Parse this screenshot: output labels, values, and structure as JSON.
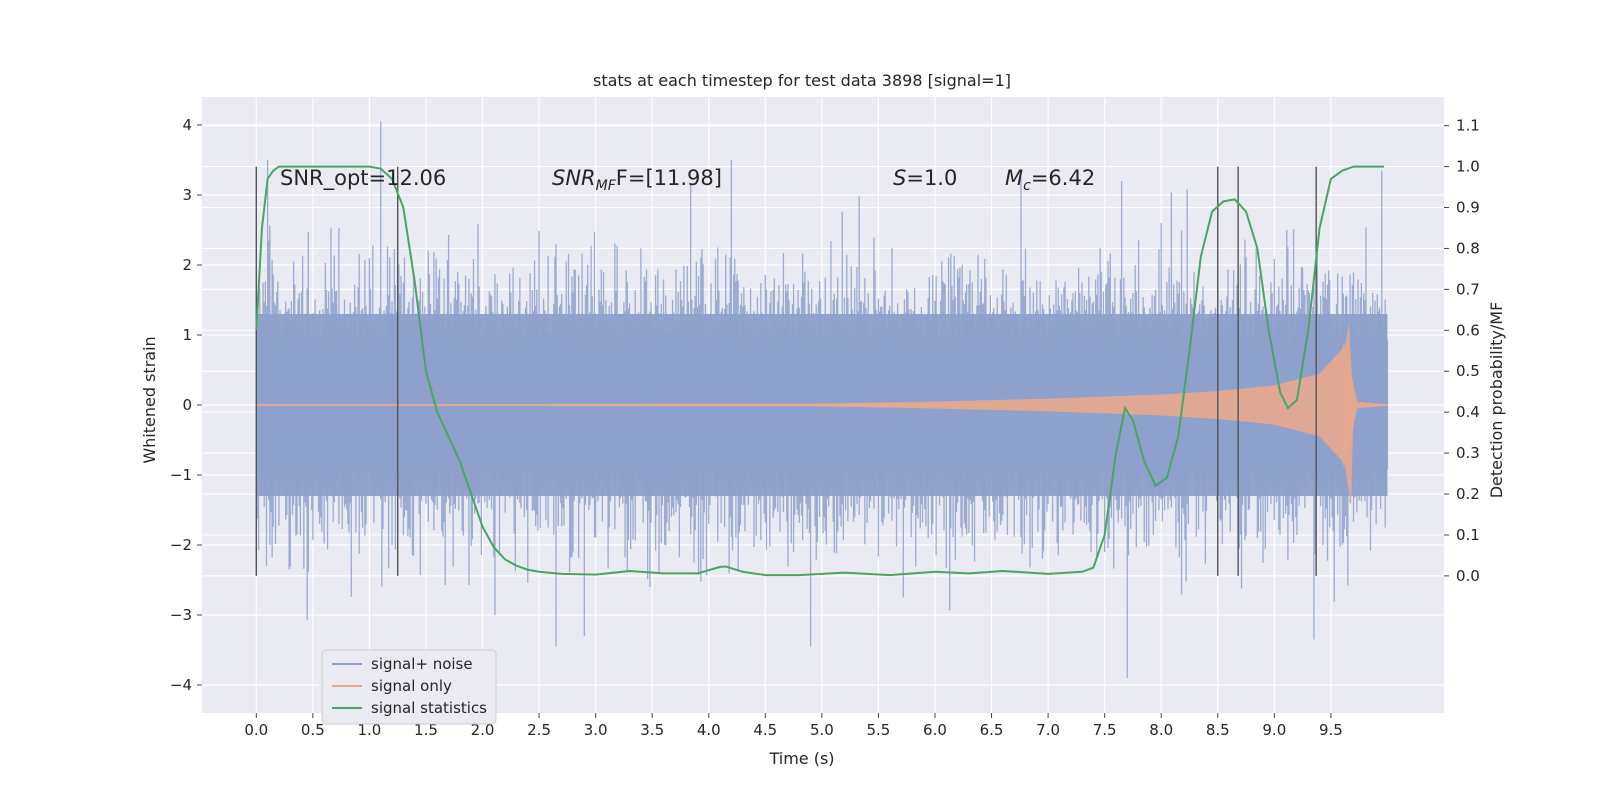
{
  "chart_data": {
    "type": "line",
    "title": "stats at each timestep for test data 3898 [signal=1]",
    "xlabel": "Time (s)",
    "ylabel": "Whitened strain",
    "ylabel_right": "Detection probability/MF",
    "xlim": [
      -0.48,
      10.5
    ],
    "ylim": [
      -4.4,
      4.4
    ],
    "ylim_right": [
      -0.335,
      1.17
    ],
    "x_ticks": [
      "0.0",
      "0.5",
      "1.0",
      "1.5",
      "2.0",
      "2.5",
      "3.0",
      "3.5",
      "4.0",
      "4.5",
      "5.0",
      "5.5",
      "6.0",
      "6.5",
      "7.0",
      "7.5",
      "8.0",
      "8.5",
      "9.0",
      "9.5"
    ],
    "y_ticks": [
      "−4",
      "−3",
      "−2",
      "−1",
      "0",
      "1",
      "2",
      "3",
      "4"
    ],
    "y_ticks_right": [
      "0.0",
      "0.1",
      "0.2",
      "0.3",
      "0.4",
      "0.5",
      "0.6",
      "0.7",
      "0.8",
      "0.9",
      "1.0",
      "1.1"
    ],
    "grid": true,
    "legend_position": "bottom-left",
    "annotations": {
      "snr_opt": "SNR_opt=12.06",
      "snr_mf_base": "SNR",
      "snr_mf_sub": "MF",
      "snr_mf_rest": "F=[11.98]",
      "s_sym": "S",
      "s_rest": "=1.0",
      "mc_base": "M",
      "mc_sub": "c",
      "mc_rest": "=6.42"
    },
    "series": [
      {
        "name": "signal+ noise",
        "color": "#8da0cb",
        "x_range": [
          0.0,
          10.0
        ],
        "band_core": [
          -1.3,
          1.3
        ],
        "peaks_max": [
          [
            0.1,
            3.5
          ],
          [
            1.1,
            4.05
          ],
          [
            4.2,
            3.5
          ],
          [
            7.65,
            3.2
          ],
          [
            9.95,
            3.35
          ]
        ],
        "peaks_min": [
          [
            2.65,
            -3.45
          ],
          [
            2.9,
            -3.3
          ],
          [
            4.9,
            -3.45
          ],
          [
            7.7,
            -3.9
          ],
          [
            9.35,
            -3.35
          ]
        ]
      },
      {
        "name": "signal only",
        "color": "#e7a88f",
        "envelope": [
          [
            0.0,
            0.01
          ],
          [
            5.0,
            0.02
          ],
          [
            6.0,
            0.05
          ],
          [
            7.0,
            0.09
          ],
          [
            8.0,
            0.15
          ],
          [
            8.5,
            0.2
          ],
          [
            9.0,
            0.28
          ],
          [
            9.4,
            0.45
          ],
          [
            9.6,
            0.8
          ],
          [
            9.66,
            1.15
          ],
          [
            9.68,
            -1.45
          ],
          [
            9.72,
            0.05
          ],
          [
            10.0,
            0.01
          ]
        ]
      },
      {
        "name": "signal statistics",
        "color": "#4aa564",
        "axis": "right",
        "x": [
          0.0,
          0.05,
          0.1,
          0.15,
          0.2,
          0.3,
          0.5,
          0.7,
          0.9,
          1.0,
          1.1,
          1.2,
          1.3,
          1.4,
          1.5,
          1.6,
          1.7,
          1.8,
          1.9,
          2.0,
          2.1,
          2.2,
          2.3,
          2.4,
          2.5,
          2.7,
          3.0,
          3.3,
          3.6,
          3.9,
          4.1,
          4.15,
          4.3,
          4.5,
          4.8,
          5.2,
          5.6,
          6.0,
          6.3,
          6.6,
          7.0,
          7.3,
          7.4,
          7.5,
          7.6,
          7.68,
          7.75,
          7.85,
          7.95,
          8.05,
          8.15,
          8.25,
          8.35,
          8.45,
          8.55,
          8.65,
          8.75,
          8.85,
          8.95,
          9.05,
          9.12,
          9.2,
          9.3,
          9.4,
          9.5,
          9.6,
          9.7,
          9.85,
          9.97
        ],
        "y": [
          0.6,
          0.85,
          0.97,
          0.99,
          1.0,
          1.0,
          1.0,
          1.0,
          1.0,
          1.0,
          0.995,
          0.97,
          0.9,
          0.72,
          0.5,
          0.4,
          0.34,
          0.28,
          0.2,
          0.12,
          0.07,
          0.04,
          0.025,
          0.015,
          0.01,
          0.005,
          0.003,
          0.012,
          0.006,
          0.006,
          0.022,
          0.023,
          0.01,
          0.002,
          0.002,
          0.008,
          0.002,
          0.01,
          0.006,
          0.012,
          0.005,
          0.01,
          0.02,
          0.1,
          0.3,
          0.41,
          0.38,
          0.28,
          0.22,
          0.24,
          0.34,
          0.55,
          0.78,
          0.89,
          0.915,
          0.92,
          0.89,
          0.8,
          0.6,
          0.45,
          0.41,
          0.43,
          0.6,
          0.85,
          0.97,
          0.99,
          1.0,
          1.0,
          1.0
        ]
      }
    ],
    "vertical_markers": [
      0.0,
      1.25,
      8.5,
      8.68,
      9.37
    ]
  }
}
